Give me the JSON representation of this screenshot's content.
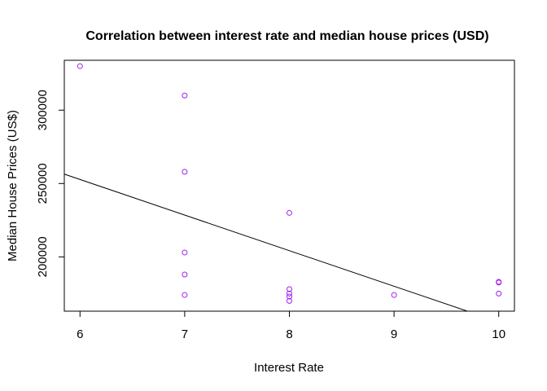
{
  "chart_data": {
    "type": "scatter",
    "title": "Correlation between interest rate and median house prices (USD)",
    "xlabel": "Interest Rate",
    "ylabel": "Median House Prices (US$)",
    "xlim": [
      5.85,
      10.15
    ],
    "ylim": [
      163000,
      334000
    ],
    "x_ticks": [
      6,
      7,
      8,
      9,
      10
    ],
    "y_ticks": [
      200000,
      250000,
      300000
    ],
    "grid": false,
    "legend": "none",
    "point_color": "#a020f0",
    "line_color": "#000000",
    "points": [
      {
        "x": 6,
        "y": 330000
      },
      {
        "x": 7,
        "y": 310000
      },
      {
        "x": 7,
        "y": 258000
      },
      {
        "x": 7,
        "y": 203000
      },
      {
        "x": 7,
        "y": 188000
      },
      {
        "x": 7,
        "y": 174000
      },
      {
        "x": 8,
        "y": 230000
      },
      {
        "x": 8,
        "y": 178000
      },
      {
        "x": 8,
        "y": 175000
      },
      {
        "x": 8,
        "y": 173000
      },
      {
        "x": 8,
        "y": 170000
      },
      {
        "x": 9,
        "y": 174000
      },
      {
        "x": 10,
        "y": 183000
      },
      {
        "x": 10,
        "y": 182500
      },
      {
        "x": 10,
        "y": 175000
      }
    ],
    "fit_line": {
      "x1": 5.85,
      "y1": 256400,
      "x2": 9.7,
      "y2": 163000
    }
  }
}
